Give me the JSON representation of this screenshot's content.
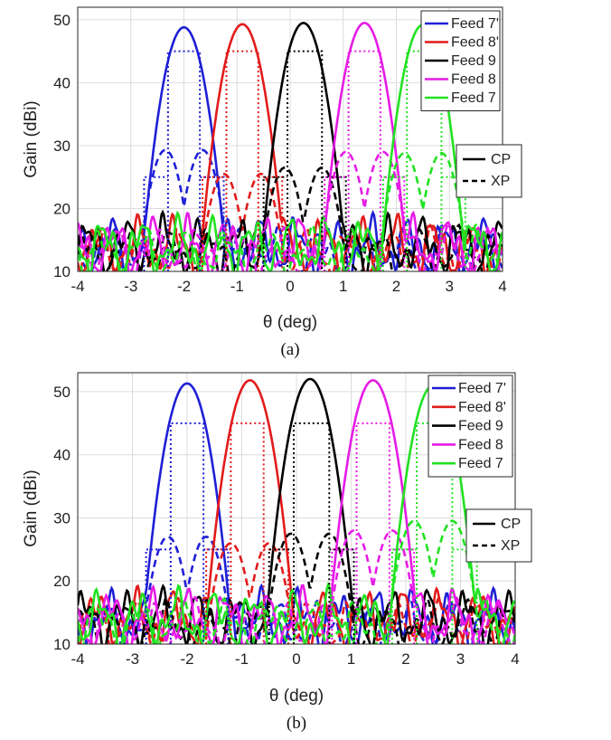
{
  "chart_data": [
    {
      "type": "line",
      "panel_label": "(a)",
      "xlabel": "θ (deg)",
      "ylabel": "Gain (dBi)",
      "xlim": [
        -4,
        4
      ],
      "ylim": [
        10,
        52
      ],
      "xticks": [
        "-4",
        "-3",
        "-2",
        "-1",
        "0",
        "1",
        "2",
        "3",
        "4"
      ],
      "yticks": [
        "10",
        "20",
        "30",
        "40",
        "50"
      ],
      "grid": true,
      "legend_position": "top-right",
      "series": [
        {
          "name": "Feed 7'",
          "color": "#1f1fd6",
          "peak_deg": -2.0,
          "peak_gain": 48.8,
          "xp_peak": 29.3
        },
        {
          "name": "Feed 8'",
          "color": "#e21b1b",
          "peak_deg": -0.9,
          "peak_gain": 49.3,
          "xp_peak": 25.5
        },
        {
          "name": "Feed 9",
          "color": "#000000",
          "peak_deg": 0.25,
          "peak_gain": 49.5,
          "xp_peak": 26.5
        },
        {
          "name": "Feed 8",
          "color": "#e61be6",
          "peak_deg": 1.4,
          "peak_gain": 49.5,
          "xp_peak": 29.0
        },
        {
          "name": "Feed 7",
          "color": "#21e221",
          "peak_deg": 2.5,
          "peak_gain": 49.2,
          "xp_peak": 28.8
        }
      ],
      "coverage_boxes": [
        {
          "color": "#1f1fd6",
          "x_from": -2.3,
          "x_to": -1.7,
          "x_outer_to": -1.2,
          "level_high": 45,
          "level_low": 25
        },
        {
          "color": "#e21b1b",
          "x_from": -1.2,
          "x_to": -0.6,
          "x_outer_to": -0.1,
          "level_high": 45,
          "level_low": 25
        },
        {
          "color": "#000000",
          "x_from": -0.05,
          "x_to": 0.6,
          "x_outer_to": 0.6,
          "level_high": 45,
          "level_low": 25
        },
        {
          "color": "#e61be6",
          "x_from": 1.1,
          "x_to": 1.7,
          "x_outer_to": 0.6,
          "level_high": 45,
          "level_low": 25
        },
        {
          "color": "#21e221",
          "x_from": 2.2,
          "x_to": 2.85,
          "x_outer_to": 1.7,
          "level_high": 45,
          "level_low": 25
        }
      ],
      "style_legend": [
        {
          "label": "CP",
          "dash": "solid"
        },
        {
          "label": "XP",
          "dash": "dashed"
        }
      ]
    },
    {
      "type": "line",
      "panel_label": "(b)",
      "xlabel": "θ (deg)",
      "ylabel": "Gain (dBi)",
      "xlim": [
        -4,
        4
      ],
      "ylim": [
        10,
        53
      ],
      "xticks": [
        "-4",
        "-3",
        "-2",
        "-1",
        "0",
        "1",
        "2",
        "3",
        "4"
      ],
      "yticks": [
        "10",
        "20",
        "30",
        "40",
        "50"
      ],
      "grid": true,
      "legend_position": "top-right",
      "series": [
        {
          "name": "Feed 7'",
          "color": "#1f1fd6",
          "peak_deg": -2.0,
          "peak_gain": 51.3,
          "xp_peak": 27.0
        },
        {
          "name": "Feed 8'",
          "color": "#e21b1b",
          "peak_deg": -0.85,
          "peak_gain": 51.8,
          "xp_peak": 26.0
        },
        {
          "name": "Feed 9",
          "color": "#000000",
          "peak_deg": 0.25,
          "peak_gain": 52.0,
          "xp_peak": 27.5
        },
        {
          "name": "Feed 8",
          "color": "#e61be6",
          "peak_deg": 1.4,
          "peak_gain": 51.8,
          "xp_peak": 28.0
        },
        {
          "name": "Feed 7",
          "color": "#21e221",
          "peak_deg": 2.5,
          "peak_gain": 51.0,
          "xp_peak": 29.5
        }
      ],
      "coverage_boxes": [
        {
          "color": "#1f1fd6",
          "x_from": -2.3,
          "x_to": -1.7,
          "x_outer_to": -1.2,
          "level_high": 45,
          "level_low": 25
        },
        {
          "color": "#e21b1b",
          "x_from": -1.2,
          "x_to": -0.6,
          "x_outer_to": -0.1,
          "level_high": 45,
          "level_low": 25
        },
        {
          "color": "#000000",
          "x_from": -0.05,
          "x_to": 0.6,
          "x_outer_to": 0.6,
          "level_high": 45,
          "level_low": 25
        },
        {
          "color": "#e61be6",
          "x_from": 1.1,
          "x_to": 1.7,
          "x_outer_to": 0.6,
          "level_high": 45,
          "level_low": 25
        },
        {
          "color": "#21e221",
          "x_from": 2.2,
          "x_to": 2.85,
          "x_outer_to": 1.7,
          "level_high": 45,
          "level_low": 25
        }
      ],
      "style_legend": [
        {
          "label": "CP",
          "dash": "solid"
        },
        {
          "label": "XP",
          "dash": "dashed"
        }
      ]
    }
  ]
}
